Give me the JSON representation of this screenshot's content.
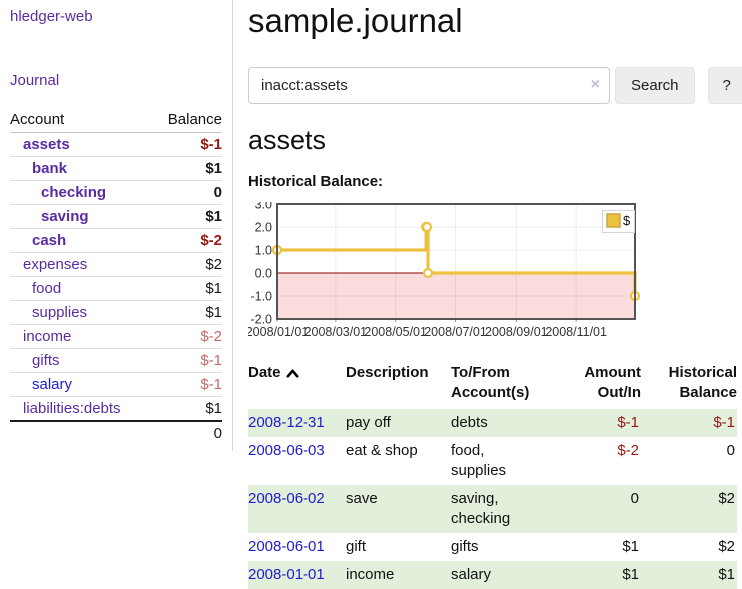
{
  "app": {
    "title": "hledger-web",
    "nav_journal": "Journal"
  },
  "sidebar": {
    "table": {
      "headers": {
        "account": "Account",
        "balance": "Balance"
      },
      "accounts": [
        {
          "name": "assets",
          "depth": 1,
          "bold": true,
          "balance": "$-1",
          "balance_style": "neg-strong",
          "link": "purple"
        },
        {
          "name": "bank",
          "depth": 2,
          "bold": true,
          "balance": "$1",
          "balance_style": "pos",
          "link": "purple"
        },
        {
          "name": "checking",
          "depth": 3,
          "bold": true,
          "balance": "0",
          "balance_style": "pos",
          "link": "purple"
        },
        {
          "name": "saving",
          "depth": 3,
          "bold": true,
          "balance": "$1",
          "balance_style": "pos",
          "link": "purple"
        },
        {
          "name": "cash",
          "depth": 2,
          "bold": true,
          "balance": "$-2",
          "balance_style": "neg-strong",
          "link": "purple"
        },
        {
          "name": "expenses",
          "depth": 1,
          "bold": false,
          "balance": "$2",
          "balance_style": "pos",
          "link": "purple"
        },
        {
          "name": "food",
          "depth": 2,
          "bold": false,
          "balance": "$1",
          "balance_style": "pos",
          "link": "purple"
        },
        {
          "name": "supplies",
          "depth": 2,
          "bold": false,
          "balance": "$1",
          "balance_style": "pos",
          "link": "purple"
        },
        {
          "name": "income",
          "depth": 1,
          "bold": false,
          "balance": "$-2",
          "balance_style": "neg-soft",
          "link": "purple"
        },
        {
          "name": "gifts",
          "depth": 2,
          "bold": false,
          "balance": "$-1",
          "balance_style": "neg-soft",
          "link": "purple"
        },
        {
          "name": "salary",
          "depth": 2,
          "bold": false,
          "balance": "$-1",
          "balance_style": "neg-soft",
          "link": "blue"
        },
        {
          "name": "liabilities:debts",
          "depth": 1,
          "bold": false,
          "balance": "$1",
          "balance_style": "pos",
          "link": "purple"
        }
      ],
      "total": "0"
    }
  },
  "header": {
    "title": "sample.journal"
  },
  "search": {
    "value": "inacct:assets",
    "clear_icon": "×",
    "button_label": "Search",
    "help_label": "?"
  },
  "account_page": {
    "heading": "assets",
    "chart_label": "Historical Balance:"
  },
  "chart_data": {
    "type": "line",
    "step": true,
    "title": "Historical Balance",
    "series": [
      {
        "name": "$",
        "color": "#edc240",
        "points": [
          [
            "2008-01-01",
            1
          ],
          [
            "2008-06-01",
            2
          ],
          [
            "2008-06-02",
            2
          ],
          [
            "2008-06-03",
            0
          ],
          [
            "2008-12-31",
            -1
          ]
        ]
      }
    ],
    "x_range": [
      "2008-01-01",
      "2008-12-31"
    ],
    "ylim": [
      -2,
      3
    ],
    "yticks": [
      "3.0",
      "2.0",
      "1.0",
      "0.0",
      "-1.0",
      "-2.0"
    ],
    "ytick_values": [
      3,
      2,
      1,
      0,
      -1,
      -2
    ],
    "xtick_labels": [
      "2008/01/01",
      "2008/03/01",
      "2008/05/01",
      "2008/07/01",
      "2008/09/01",
      "2008/11/01"
    ],
    "xtick_dates": [
      "2008-01-01",
      "2008-03-01",
      "2008-05-01",
      "2008-07-01",
      "2008-09-01",
      "2008-11-01"
    ],
    "grid": true,
    "legend_position": "top-right",
    "legend_label": "$",
    "negative_region_color": "#fbdcdc",
    "zero_line_color": "#8b0000",
    "border_color": "#545454"
  },
  "register": {
    "headers": {
      "date": "Date",
      "description_l1": "Description",
      "accounts_l1": "To/From",
      "accounts_l2": "Account(s)",
      "amount_l1": "Amount",
      "amount_l2": "Out/In",
      "balance_l1": "Historical",
      "balance_l2": "Balance"
    },
    "rows": [
      {
        "date": "2008-12-31",
        "description": "pay off",
        "accounts": "debts",
        "amount": "$-1",
        "amount_neg": true,
        "balance": "$-1",
        "balance_neg": true
      },
      {
        "date": "2008-06-03",
        "description": "eat & shop",
        "accounts": "food, supplies",
        "amount": "$-2",
        "amount_neg": true,
        "balance": "0",
        "balance_neg": false
      },
      {
        "date": "2008-06-02",
        "description": "save",
        "accounts": "saving, checking",
        "amount": "0",
        "amount_neg": false,
        "balance": "$2",
        "balance_neg": false
      },
      {
        "date": "2008-06-01",
        "description": "gift",
        "accounts": "gifts",
        "amount": "$1",
        "amount_neg": false,
        "balance": "$2",
        "balance_neg": false
      },
      {
        "date": "2008-01-01",
        "description": "income",
        "accounts": "salary",
        "amount": "$1",
        "amount_neg": false,
        "balance": "$1",
        "balance_neg": false
      }
    ]
  }
}
